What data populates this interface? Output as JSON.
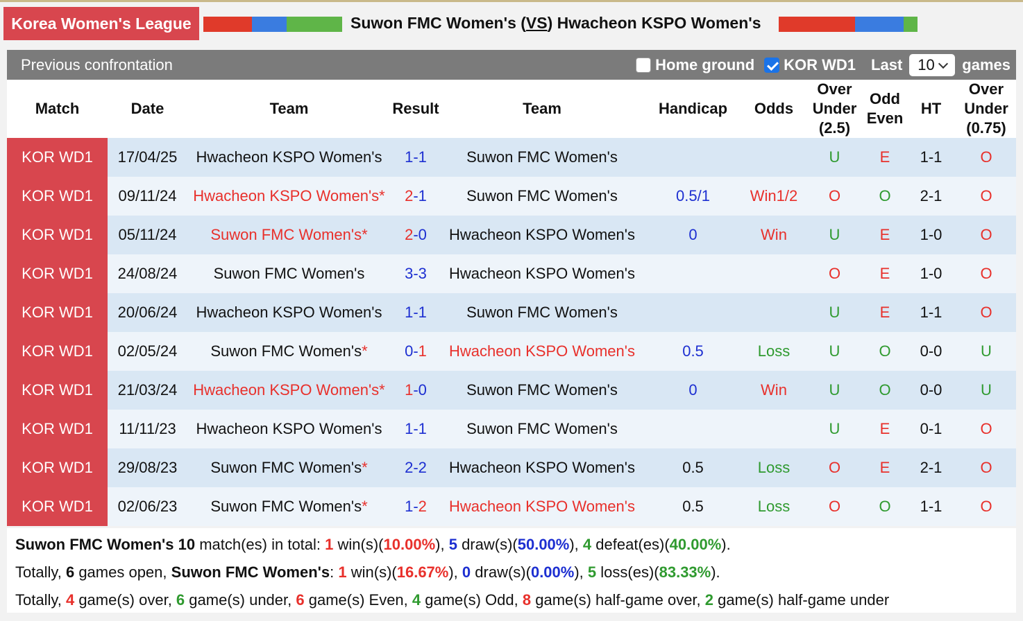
{
  "header": {
    "league": "Korea Women's League",
    "title_home": "Suwon FMC Women's (",
    "title_vs": "VS",
    "title_away": ") Hwacheon KSPO Women's"
  },
  "toolbar": {
    "title": "Previous confrontation",
    "home_ground": "Home ground",
    "home_ground_checked": false,
    "league_filter": "KOR WD1",
    "league_filter_checked": true,
    "last": "Last",
    "count": "10",
    "games": "games"
  },
  "table": {
    "columns": [
      "Match",
      "Date",
      "Team",
      "Result",
      "Team",
      "Handicap",
      "Odds",
      "Over Under (2.5)",
      "Odd Even",
      "HT",
      "Over Under (0.75)"
    ],
    "score_separator": "-",
    "star": "*",
    "colors": {
      "red": "#e8302b",
      "blue": "#1d2fd1",
      "green": "#2f9a2f",
      "black": "#111111"
    },
    "rows": [
      {
        "match": "KOR WD1",
        "date": "17/04/25",
        "home": "Hwacheon KSPO Women's",
        "home_color": "black",
        "score_home": "1",
        "score_home_color": "blue",
        "score_away": "1",
        "score_away_color": "blue",
        "away": "Suwon FMC Women's",
        "away_color": "black",
        "ou": "U",
        "ou_color": "green",
        "oe": "E",
        "oe_color": "red",
        "ht": "1-1",
        "ou2": "O",
        "ou2_color": "red"
      },
      {
        "match": "KOR WD1",
        "date": "09/11/24",
        "home": "Hwacheon KSPO Women's",
        "home_star": true,
        "home_color": "red",
        "score_home": "2",
        "score_home_color": "red",
        "score_away": "1",
        "score_away_color": "blue",
        "away": "Suwon FMC Women's",
        "away_color": "black",
        "handicap": "0.5/1",
        "handicap_color": "blue",
        "odds": "Win1/2",
        "odds_color": "red",
        "ou": "O",
        "ou_color": "red",
        "oe": "O",
        "oe_color": "green",
        "ht": "2-1",
        "ou2": "O",
        "ou2_color": "red"
      },
      {
        "match": "KOR WD1",
        "date": "05/11/24",
        "home": "Suwon FMC Women's",
        "home_star": true,
        "home_color": "red",
        "score_home": "2",
        "score_home_color": "red",
        "score_away": "0",
        "score_away_color": "blue",
        "away": "Hwacheon KSPO Women's",
        "away_color": "black",
        "handicap": "0",
        "handicap_color": "blue",
        "odds": "Win",
        "odds_color": "red",
        "ou": "U",
        "ou_color": "green",
        "oe": "E",
        "oe_color": "red",
        "ht": "1-0",
        "ou2": "O",
        "ou2_color": "red"
      },
      {
        "match": "KOR WD1",
        "date": "24/08/24",
        "home": "Suwon FMC Women's",
        "home_color": "black",
        "score_home": "3",
        "score_home_color": "blue",
        "score_away": "3",
        "score_away_color": "blue",
        "away": "Hwacheon KSPO Women's",
        "away_color": "black",
        "ou": "O",
        "ou_color": "red",
        "oe": "E",
        "oe_color": "red",
        "ht": "1-0",
        "ou2": "O",
        "ou2_color": "red"
      },
      {
        "match": "KOR WD1",
        "date": "20/06/24",
        "home": "Hwacheon KSPO Women's",
        "home_color": "black",
        "score_home": "1",
        "score_home_color": "blue",
        "score_away": "1",
        "score_away_color": "blue",
        "away": "Suwon FMC Women's",
        "away_color": "black",
        "ou": "U",
        "ou_color": "green",
        "oe": "E",
        "oe_color": "red",
        "ht": "1-1",
        "ou2": "O",
        "ou2_color": "red"
      },
      {
        "match": "KOR WD1",
        "date": "02/05/24",
        "home": "Suwon FMC Women's",
        "home_star": true,
        "home_color": "black",
        "score_home": "0",
        "score_home_color": "blue",
        "score_away": "1",
        "score_away_color": "red",
        "away": "Hwacheon KSPO Women's",
        "away_color": "red",
        "handicap": "0.5",
        "handicap_color": "blue",
        "odds": "Loss",
        "odds_color": "green",
        "ou": "U",
        "ou_color": "green",
        "oe": "O",
        "oe_color": "green",
        "ht": "0-0",
        "ou2": "U",
        "ou2_color": "green"
      },
      {
        "match": "KOR WD1",
        "date": "21/03/24",
        "home": "Hwacheon KSPO Women's",
        "home_star": true,
        "home_color": "red",
        "score_home": "1",
        "score_home_color": "red",
        "score_away": "0",
        "score_away_color": "blue",
        "away": "Suwon FMC Women's",
        "away_color": "black",
        "handicap": "0",
        "handicap_color": "blue",
        "odds": "Win",
        "odds_color": "red",
        "ou": "U",
        "ou_color": "green",
        "oe": "O",
        "oe_color": "green",
        "ht": "0-0",
        "ou2": "U",
        "ou2_color": "green"
      },
      {
        "match": "KOR WD1",
        "date": "11/11/23",
        "home": "Hwacheon KSPO Women's",
        "home_color": "black",
        "score_home": "1",
        "score_home_color": "blue",
        "score_away": "1",
        "score_away_color": "blue",
        "away": "Suwon FMC Women's",
        "away_color": "black",
        "ou": "U",
        "ou_color": "green",
        "oe": "E",
        "oe_color": "red",
        "ht": "0-1",
        "ou2": "O",
        "ou2_color": "red"
      },
      {
        "match": "KOR WD1",
        "date": "29/08/23",
        "home": "Suwon FMC Women's",
        "home_star": true,
        "home_color": "black",
        "score_home": "2",
        "score_home_color": "blue",
        "score_away": "2",
        "score_away_color": "blue",
        "away": "Hwacheon KSPO Women's",
        "away_color": "black",
        "handicap": "0.5",
        "handicap_color": "black",
        "odds": "Loss",
        "odds_color": "green",
        "ou": "O",
        "ou_color": "red",
        "oe": "E",
        "oe_color": "red",
        "ht": "2-1",
        "ou2": "O",
        "ou2_color": "red"
      },
      {
        "match": "KOR WD1",
        "date": "02/06/23",
        "home": "Suwon FMC Women's",
        "home_star": true,
        "home_color": "black",
        "score_home": "1",
        "score_home_color": "blue",
        "score_away": "2",
        "score_away_color": "red",
        "away": "Hwacheon KSPO Women's",
        "away_color": "red",
        "handicap": "0.5",
        "handicap_color": "black",
        "odds": "Loss",
        "odds_color": "green",
        "ou": "O",
        "ou_color": "red",
        "oe": "O",
        "oe_color": "green",
        "ht": "1-1",
        "ou2": "O",
        "ou2_color": "red"
      }
    ]
  },
  "summary": [
    [
      {
        "t": "Suwon FMC Women's 10",
        "s": "bold"
      },
      {
        "t": " match(es) in total: "
      },
      {
        "t": "1",
        "s": "red"
      },
      {
        "t": " win(s)("
      },
      {
        "t": "10.00%",
        "s": "red"
      },
      {
        "t": "), "
      },
      {
        "t": "5",
        "s": "blue"
      },
      {
        "t": " draw(s)("
      },
      {
        "t": "50.00%",
        "s": "blue"
      },
      {
        "t": "), "
      },
      {
        "t": "4",
        "s": "green"
      },
      {
        "t": " defeat(es)("
      },
      {
        "t": "40.00%",
        "s": "green"
      },
      {
        "t": ")."
      }
    ],
    [
      {
        "t": "Totally, "
      },
      {
        "t": "6",
        "s": "bold"
      },
      {
        "t": " games open, "
      },
      {
        "t": "Suwon FMC Women's",
        "s": "bold"
      },
      {
        "t": ": "
      },
      {
        "t": "1",
        "s": "red"
      },
      {
        "t": " win(s)("
      },
      {
        "t": "16.67%",
        "s": "red"
      },
      {
        "t": "), "
      },
      {
        "t": "0",
        "s": "blue"
      },
      {
        "t": " draw(s)("
      },
      {
        "t": "0.00%",
        "s": "blue"
      },
      {
        "t": "), "
      },
      {
        "t": "5",
        "s": "green"
      },
      {
        "t": " loss(es)("
      },
      {
        "t": "83.33%",
        "s": "green"
      },
      {
        "t": ")."
      }
    ],
    [
      {
        "t": "Totally, "
      },
      {
        "t": "4",
        "s": "red"
      },
      {
        "t": " game(s) over, "
      },
      {
        "t": "6",
        "s": "green"
      },
      {
        "t": " game(s) under, "
      },
      {
        "t": "6",
        "s": "red"
      },
      {
        "t": " game(s) Even, "
      },
      {
        "t": "4",
        "s": "green"
      },
      {
        "t": " game(s) Odd, "
      },
      {
        "t": "8",
        "s": "red"
      },
      {
        "t": " game(s) half-game over, "
      },
      {
        "t": "2",
        "s": "green"
      },
      {
        "t": " game(s) half-game under"
      }
    ]
  ]
}
